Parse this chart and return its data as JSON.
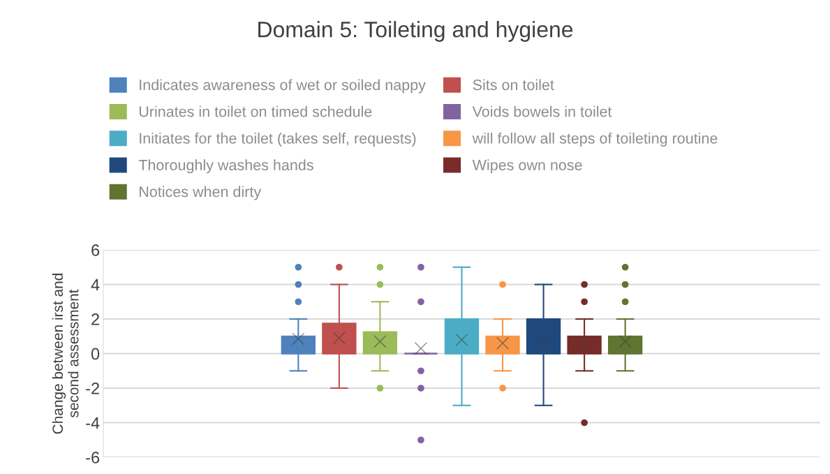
{
  "chart_data": {
    "type": "box",
    "title": "Domain 5: Toileting and hygiene",
    "ylabel": "Change between irst and\nsecond assessment",
    "categories": [
      null
    ],
    "ylim": [
      -6,
      6
    ],
    "yticks": [
      -6,
      -4,
      -2,
      0,
      2,
      4,
      6
    ],
    "grid": "y",
    "legend": "top",
    "tick_labels": "y",
    "series": [
      {
        "name": "Indicates awareness of wet or soiled nappy",
        "color": "#4f81bd",
        "boxes": [
          {
            "low": -1,
            "q1": 0,
            "median": 0,
            "q3": 1,
            "high": 2,
            "mean": 0.85,
            "outliers": [
              3,
              4,
              5
            ]
          }
        ]
      },
      {
        "name": "Sits on toilet",
        "color": "#c0504d",
        "boxes": [
          {
            "low": -2,
            "q1": 0,
            "median": 0,
            "q3": 1.75,
            "high": 4,
            "mean": 0.9,
            "outliers": [
              5
            ]
          }
        ]
      },
      {
        "name": "Urinates in toilet on timed schedule",
        "color": "#9bbb59",
        "boxes": [
          {
            "low": -1,
            "q1": 0,
            "median": 0,
            "q3": 1.25,
            "high": 3,
            "mean": 0.7,
            "outliers": [
              5,
              4,
              -2
            ]
          }
        ]
      },
      {
        "name": "Voids bowels in toilet",
        "color": "#8064a2",
        "boxes": [
          {
            "low": 0,
            "q1": 0,
            "median": 0,
            "q3": 0,
            "high": 0,
            "mean": 0.3,
            "outliers": [
              5,
              3,
              -1,
              -2,
              -5
            ]
          }
        ]
      },
      {
        "name": "Initiates for the toilet (takes self, requests)",
        "color": "#4bacc6",
        "boxes": [
          {
            "low": -3,
            "q1": 0,
            "median": 0,
            "q3": 2,
            "high": 5,
            "mean": 0.8
          }
        ]
      },
      {
        "name": "will follow all steps of toileting routine",
        "color": "#f79646",
        "boxes": [
          {
            "low": -1,
            "q1": 0,
            "median": 0,
            "q3": 1,
            "high": 2,
            "mean": 0.6,
            "outliers": [
              4,
              -2
            ]
          }
        ]
      },
      {
        "name": "Thoroughly washes hands",
        "color": "#1f497d",
        "boxes": [
          {
            "low": -3,
            "q1": 0,
            "median": 0,
            "q3": 2,
            "high": 4,
            "mean": 0.7
          }
        ]
      },
      {
        "name": "Wipes own nose",
        "color": "#772c2a",
        "boxes": [
          {
            "low": -1,
            "q1": 0,
            "median": 0,
            "q3": 1,
            "high": 2,
            "mean": 0.5,
            "outliers": [
              4,
              3,
              -4
            ]
          }
        ]
      },
      {
        "name": "Notices when dirty",
        "color": "#5f7530",
        "boxes": [
          {
            "low": -1,
            "q1": 0,
            "median": 0,
            "q3": 1,
            "high": 2,
            "mean": 0.7,
            "outliers": [
              5,
              4,
              3
            ]
          }
        ]
      }
    ]
  }
}
